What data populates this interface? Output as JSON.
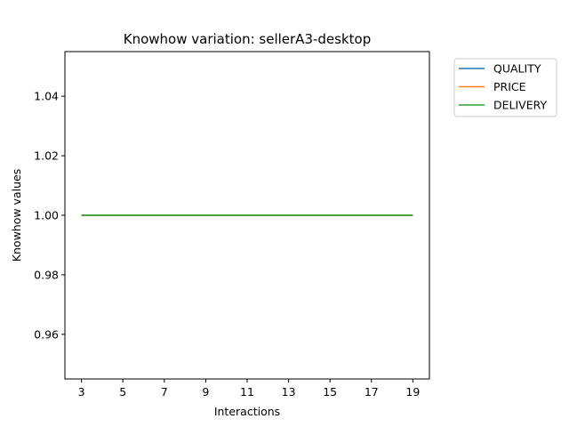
{
  "chart_data": {
    "type": "line",
    "title": "Knowhow variation: sellerA3-desktop",
    "xlabel": "Interactions",
    "ylabel": "Knowhow values",
    "x": [
      3,
      4,
      5,
      6,
      7,
      8,
      9,
      10,
      11,
      12,
      13,
      14,
      15,
      16,
      17,
      18,
      19
    ],
    "xticks": [
      3,
      5,
      7,
      9,
      11,
      13,
      15,
      17,
      19
    ],
    "yticks": [
      0.96,
      0.98,
      1.0,
      1.02,
      1.04
    ],
    "ytick_labels": [
      "0.96",
      "0.98",
      "1.00",
      "1.02",
      "1.04"
    ],
    "xlim": [
      2.2,
      19.8
    ],
    "ylim": [
      0.945,
      1.055
    ],
    "grid": false,
    "legend_position": "outside-upper-right",
    "series": [
      {
        "name": "QUALITY",
        "color": "#1f77b4",
        "values": [
          1,
          1,
          1,
          1,
          1,
          1,
          1,
          1,
          1,
          1,
          1,
          1,
          1,
          1,
          1,
          1,
          1
        ]
      },
      {
        "name": "PRICE",
        "color": "#ff7f0e",
        "values": [
          1,
          1,
          1,
          1,
          1,
          1,
          1,
          1,
          1,
          1,
          1,
          1,
          1,
          1,
          1,
          1,
          1
        ]
      },
      {
        "name": "DELIVERY",
        "color": "#2ca02c",
        "values": [
          1,
          1,
          1,
          1,
          1,
          1,
          1,
          1,
          1,
          1,
          1,
          1,
          1,
          1,
          1,
          1,
          1
        ]
      }
    ]
  }
}
